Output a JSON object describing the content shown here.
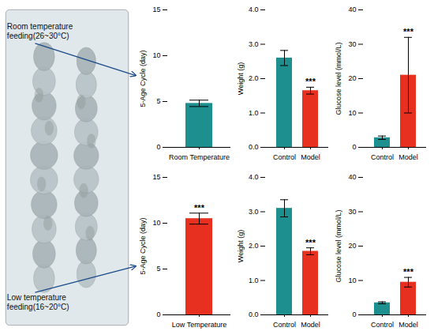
{
  "chart_data": [
    {
      "type": "bar",
      "categories": [
        "Room Temperature"
      ],
      "values": [
        4.8
      ],
      "errors": [
        0.35
      ],
      "colors": [
        "#1E8F8F"
      ],
      "ylabel": "5-Age Cycle (day)",
      "ylim": [
        0,
        15
      ],
      "yticks": [
        0,
        5,
        10,
        15
      ],
      "annotations": [
        "Room temperature\nfeeding(26~30°C)"
      ]
    },
    {
      "type": "bar",
      "categories": [
        "Control",
        "Model"
      ],
      "values": [
        2.6,
        1.65
      ],
      "errors": [
        0.22,
        0.1
      ],
      "colors": [
        "#1E8F8F",
        "#E83020"
      ],
      "ylabel": "Weight (g)",
      "ylim": [
        0,
        4
      ],
      "yticks": [
        0,
        1,
        2,
        3,
        4
      ],
      "sig_labels": [
        null,
        "***"
      ]
    },
    {
      "type": "bar",
      "categories": [
        "Control",
        "Model"
      ],
      "values": [
        2.8,
        21.0
      ],
      "errors": [
        0.5,
        11.0
      ],
      "colors": [
        "#1E8F8F",
        "#E83020"
      ],
      "ylabel": "Glucose level (mmol/L)",
      "ylim": [
        0,
        40
      ],
      "yticks": [
        0,
        10,
        20,
        30,
        40
      ],
      "sig_labels": [
        null,
        "***"
      ]
    },
    {
      "type": "bar",
      "categories": [
        "Low Temperature"
      ],
      "values": [
        10.5
      ],
      "errors": [
        0.6
      ],
      "colors": [
        "#E83020"
      ],
      "ylabel": "5-Age Cycle (day)",
      "ylim": [
        0,
        15
      ],
      "yticks": [
        0,
        5,
        10,
        15
      ],
      "sig_labels": [
        "***"
      ],
      "annotations": [
        "Low temperature\nfeeding(16~20°C)"
      ]
    },
    {
      "type": "bar",
      "categories": [
        "Control",
        "Model"
      ],
      "values": [
        3.1,
        1.85
      ],
      "errors": [
        0.25,
        0.1
      ],
      "colors": [
        "#1E8F8F",
        "#E83020"
      ],
      "ylabel": "Weight (g)",
      "ylim": [
        0,
        4
      ],
      "yticks": [
        0,
        1,
        2,
        3,
        4
      ],
      "sig_labels": [
        null,
        "***"
      ]
    },
    {
      "type": "bar",
      "categories": [
        "Control",
        "Model"
      ],
      "values": [
        3.5,
        9.5
      ],
      "errors": [
        0.28,
        1.4
      ],
      "colors": [
        "#1E8F8F",
        "#E83020"
      ],
      "ylabel": "Glucose level (mmol/L)",
      "ylim": [
        0,
        40
      ],
      "yticks": [
        0,
        10,
        20,
        30,
        40
      ],
      "sig_labels": [
        null,
        "***"
      ]
    }
  ]
}
